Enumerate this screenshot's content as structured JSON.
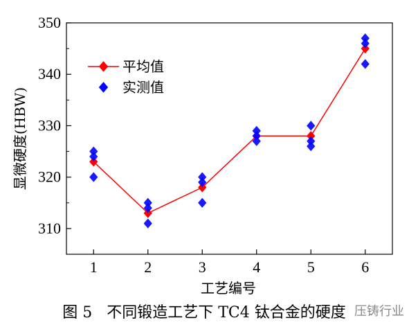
{
  "chart_data": {
    "type": "line",
    "categories": [
      "1",
      "2",
      "3",
      "4",
      "5",
      "6"
    ],
    "x": [
      1,
      2,
      3,
      4,
      5,
      6
    ],
    "series": [
      {
        "name": "平均值",
        "values": [
          323,
          313,
          318,
          328,
          328,
          345
        ],
        "color": "#ff0000",
        "marker": "diamond"
      },
      {
        "name": "实测值",
        "points": [
          [
            1,
            320
          ],
          [
            1,
            324
          ],
          [
            1,
            325
          ],
          [
            2,
            311
          ],
          [
            2,
            314
          ],
          [
            2,
            315
          ],
          [
            3,
            315
          ],
          [
            3,
            319
          ],
          [
            3,
            320
          ],
          [
            4,
            327
          ],
          [
            4,
            328
          ],
          [
            4,
            329
          ],
          [
            5,
            326
          ],
          [
            5,
            327
          ],
          [
            5,
            330
          ],
          [
            6,
            342
          ],
          [
            6,
            346
          ],
          [
            6,
            347
          ]
        ],
        "color": "#0000ff",
        "marker": "diamond"
      }
    ],
    "xlabel": "工艺编号",
    "ylabel": "显微硬度(HBW)",
    "xlim": [
      0.5,
      6.5
    ],
    "ylim": [
      305,
      350
    ],
    "yticks": [
      310,
      320,
      330,
      340,
      350
    ],
    "xticks": [
      1,
      2,
      3,
      4,
      5,
      6
    ],
    "grid": false,
    "legend_position": "top-left"
  },
  "caption": "图 5   不同锻造工艺下 TC4 钛合金的硬度",
  "watermark": "压铸行业"
}
